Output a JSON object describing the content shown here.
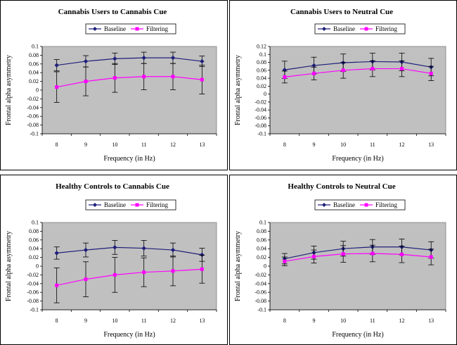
{
  "chart_data": [
    {
      "type": "line",
      "title": "Cannabis Users to Cannabis Cue",
      "xlabel": "Frequency (in Hz)",
      "ylabel": "Frontal alpha asymmetry",
      "x": [
        8,
        9,
        10,
        11,
        12,
        13
      ],
      "ylim": [
        -0.1,
        0.1
      ],
      "ystep": 0.02,
      "yticks": [
        "0.1",
        "0.08",
        "0.06",
        "0.04",
        "0.02",
        "0",
        "-0.02",
        "-0.04",
        "-0.06",
        "-0.08",
        "-0.1"
      ],
      "grid": false,
      "legend": "top",
      "series": [
        {
          "name": "Baseline",
          "color": "#1f1f7a",
          "marker": "diamond",
          "values": [
            0.057,
            0.066,
            0.072,
            0.074,
            0.074,
            0.066
          ],
          "errors": [
            0.013,
            0.013,
            0.013,
            0.013,
            0.013,
            0.012
          ]
        },
        {
          "name": "Filtering",
          "color": "#ff00ff",
          "marker": "square",
          "values": [
            0.007,
            0.02,
            0.028,
            0.031,
            0.031,
            0.024
          ],
          "errors": [
            0.035,
            0.033,
            0.033,
            0.03,
            0.03,
            0.033
          ]
        }
      ]
    },
    {
      "type": "line",
      "title": "Cannabis Users to Neutral Cue",
      "xlabel": "Frequency (in Hz)",
      "ylabel": "Frontal alpha asymmetry",
      "x": [
        8,
        9,
        10,
        11,
        12,
        13
      ],
      "ylim": [
        -0.1,
        0.12
      ],
      "ystep": 0.02,
      "yticks": [
        "0.12",
        "0.1",
        "0.08",
        "0.06",
        "0.04",
        "0.02",
        "0",
        "-0.02",
        "-0.04",
        "-0.06",
        "-0.08",
        "-0.1"
      ],
      "grid": false,
      "legend": "top",
      "series": [
        {
          "name": "Baseline",
          "color": "#1f1f7a",
          "marker": "diamond",
          "values": [
            0.061,
            0.072,
            0.079,
            0.082,
            0.081,
            0.068
          ],
          "errors": [
            0.022,
            0.021,
            0.022,
            0.021,
            0.022,
            0.022
          ]
        },
        {
          "name": "Filtering",
          "color": "#ff00ff",
          "marker": "square",
          "values": [
            0.043,
            0.052,
            0.06,
            0.064,
            0.064,
            0.052
          ],
          "errors": [
            0.015,
            0.016,
            0.02,
            0.02,
            0.02,
            0.018
          ]
        }
      ]
    },
    {
      "type": "line",
      "title": "Healthy Controls to Cannabis Cue",
      "xlabel": "Frequency (in Hz)",
      "ylabel": "Frontal alpha asymmetry",
      "x": [
        8,
        9,
        10,
        11,
        12,
        13
      ],
      "ylim": [
        -0.1,
        0.1
      ],
      "ystep": 0.02,
      "yticks": [
        "0.1",
        "0.08",
        "0.06",
        "0.04",
        "0.02",
        "0",
        "-0.02",
        "-0.04",
        "-0.06",
        "-0.08",
        "-0.1"
      ],
      "grid": false,
      "legend": "top",
      "series": [
        {
          "name": "Baseline",
          "color": "#1f1f7a",
          "marker": "diamond",
          "values": [
            0.03,
            0.037,
            0.043,
            0.041,
            0.037,
            0.026
          ],
          "errors": [
            0.014,
            0.016,
            0.016,
            0.018,
            0.016,
            0.015
          ]
        },
        {
          "name": "Filtering",
          "color": "#ff00ff",
          "marker": "square",
          "values": [
            -0.044,
            -0.03,
            -0.02,
            -0.014,
            -0.011,
            -0.007
          ],
          "errors": [
            0.04,
            0.04,
            0.04,
            0.033,
            0.034,
            0.032
          ]
        }
      ]
    },
    {
      "type": "line",
      "title": "Healthy Controls to Neutral Cue",
      "xlabel": "Frequency (in Hz)",
      "ylabel": "Frontal alpha asymmetry",
      "x": [
        8,
        9,
        10,
        11,
        12,
        13
      ],
      "ylim": [
        -0.1,
        0.1
      ],
      "ystep": 0.02,
      "yticks": [
        "0.1",
        "0.08",
        "0.06",
        "0.04",
        "0.02",
        "0",
        "-0.02",
        "-0.04",
        "-0.06",
        "-0.08",
        "-0.1"
      ],
      "grid": false,
      "legend": "top",
      "series": [
        {
          "name": "Baseline",
          "color": "#1f1f7a",
          "marker": "diamond",
          "values": [
            0.017,
            0.031,
            0.04,
            0.044,
            0.044,
            0.037
          ],
          "errors": [
            0.012,
            0.015,
            0.017,
            0.017,
            0.018,
            0.019
          ]
        },
        {
          "name": "Filtering",
          "color": "#ff00ff",
          "marker": "square",
          "values": [
            0.011,
            0.022,
            0.028,
            0.029,
            0.027,
            0.021
          ],
          "errors": [
            0.01,
            0.015,
            0.019,
            0.019,
            0.019,
            0.018
          ]
        }
      ]
    }
  ]
}
